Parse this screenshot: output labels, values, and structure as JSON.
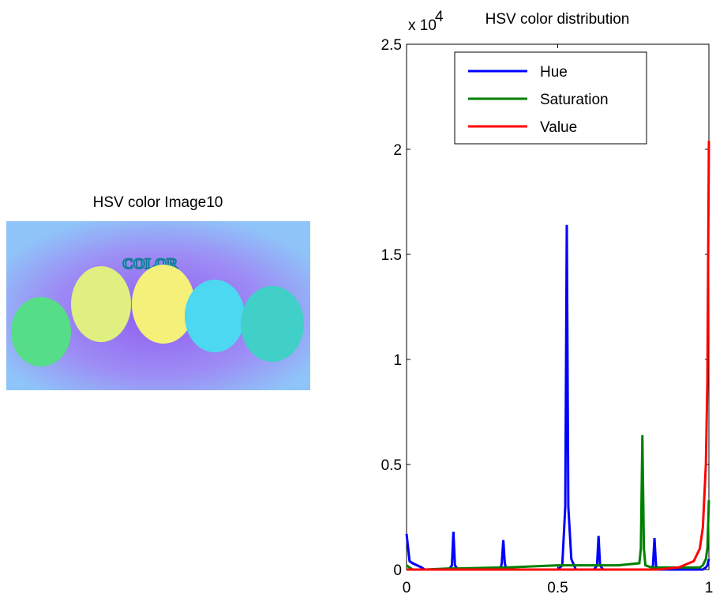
{
  "image_panel": {
    "title": "HSV color Image10",
    "text": "COLOR"
  },
  "chart_data": {
    "type": "line",
    "title": "HSV color distribution",
    "y_multiplier": "x 10",
    "y_exponent": "4",
    "x": [
      0,
      0.01,
      0.02,
      0.05,
      0.06,
      0.14,
      0.15,
      0.155,
      0.16,
      0.17,
      0.31,
      0.315,
      0.32,
      0.325,
      0.33,
      0.5,
      0.515,
      0.525,
      0.53,
      0.535,
      0.545,
      0.56,
      0.62,
      0.63,
      0.635,
      0.64,
      0.65,
      0.7,
      0.77,
      0.775,
      0.78,
      0.785,
      0.79,
      0.81,
      0.815,
      0.82,
      0.825,
      0.83,
      0.9,
      0.95,
      0.97,
      0.98,
      0.99,
      0.995,
      1.0
    ],
    "series": [
      {
        "name": "Hue",
        "color": "#0000ff",
        "values": [
          0.17,
          0.04,
          0.03,
          0.01,
          0,
          0,
          0.02,
          0.18,
          0.02,
          0,
          0,
          0.03,
          0.14,
          0.03,
          0,
          0,
          0.02,
          0.3,
          1.64,
          0.3,
          0.05,
          0,
          0,
          0.02,
          0.16,
          0.02,
          0,
          0,
          0,
          0,
          0,
          0,
          0,
          0,
          0.02,
          0.15,
          0.02,
          0,
          0,
          0,
          0,
          0,
          0.01,
          0.02,
          0.05
        ]
      },
      {
        "name": "Saturation",
        "color": "#008000",
        "values": [
          0.02,
          0.01,
          0,
          0,
          0,
          0.005,
          0.005,
          0.005,
          0.005,
          0.005,
          0.01,
          0.01,
          0.01,
          0.01,
          0.01,
          0.02,
          0.02,
          0.02,
          0.02,
          0.02,
          0.02,
          0.02,
          0.02,
          0.02,
          0.02,
          0.02,
          0.02,
          0.02,
          0.03,
          0.1,
          0.64,
          0.1,
          0.02,
          0.01,
          0.01,
          0.01,
          0.01,
          0.01,
          0.01,
          0.01,
          0.01,
          0.02,
          0.05,
          0.1,
          0.33
        ]
      },
      {
        "name": "Value",
        "color": "#ff0000",
        "values": [
          0,
          0,
          0,
          0,
          0,
          0,
          0,
          0,
          0,
          0,
          0,
          0,
          0,
          0,
          0,
          0,
          0,
          0,
          0,
          0,
          0,
          0,
          0,
          0,
          0,
          0,
          0,
          0,
          0,
          0,
          0,
          0,
          0,
          0,
          0,
          0,
          0,
          0,
          0.01,
          0.04,
          0.1,
          0.2,
          0.5,
          0.9,
          2.04
        ]
      }
    ],
    "xlim": [
      0,
      1
    ],
    "xticks": [
      0,
      0.5,
      1
    ],
    "ylim": [
      0,
      2.5
    ],
    "yticks": [
      0,
      0.5,
      1,
      1.5,
      2,
      2.5
    ],
    "legend": "top"
  }
}
